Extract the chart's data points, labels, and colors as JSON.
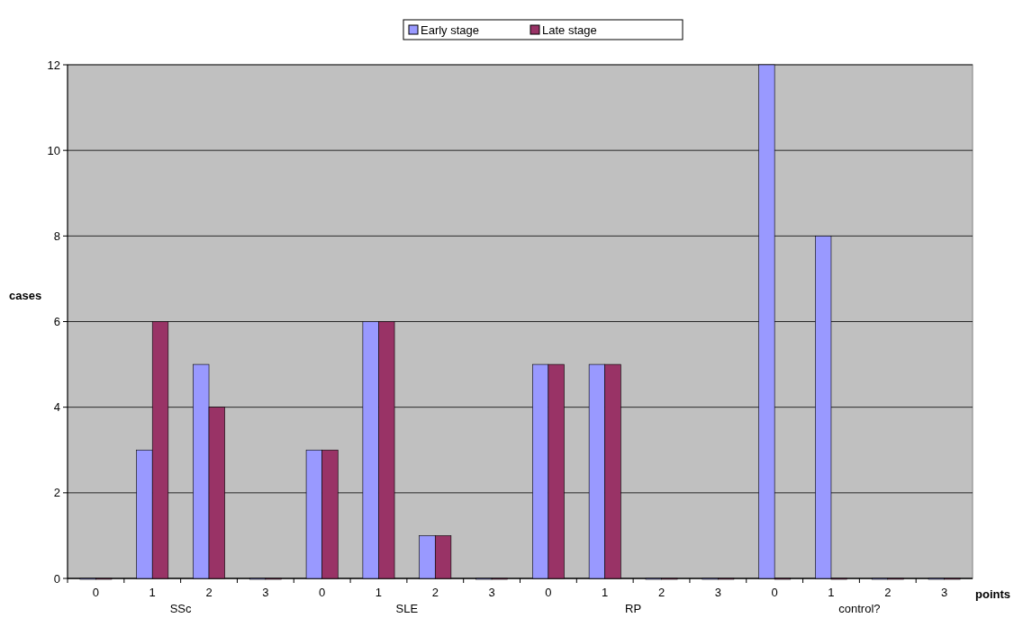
{
  "chart_data": {
    "type": "bar",
    "xlabel": "points",
    "ylabel": "cases",
    "categories": [
      "0",
      "1",
      "2",
      "3",
      "0",
      "1",
      "2",
      "3",
      "0",
      "1",
      "2",
      "3",
      "0",
      "1",
      "2",
      "3"
    ],
    "series": [
      {
        "name": "Early stage",
        "color": "#9999ff",
        "values": [
          0,
          3,
          5,
          0,
          3,
          6,
          1,
          0,
          5,
          5,
          0,
          0,
          12,
          8,
          0,
          0
        ]
      },
      {
        "name": "Late stage",
        "color": "#993366",
        "values": [
          0,
          6,
          4,
          0,
          3,
          6,
          1,
          0,
          5,
          5,
          0,
          0,
          0,
          0,
          0,
          0
        ]
      }
    ],
    "annotations": [
      "SSc",
      "SLE",
      "RP",
      "control?"
    ],
    "ylim": [
      0,
      12
    ],
    "yticks": [
      0,
      2,
      4,
      6,
      8,
      10,
      12
    ],
    "grid": "y",
    "legend": "top"
  }
}
